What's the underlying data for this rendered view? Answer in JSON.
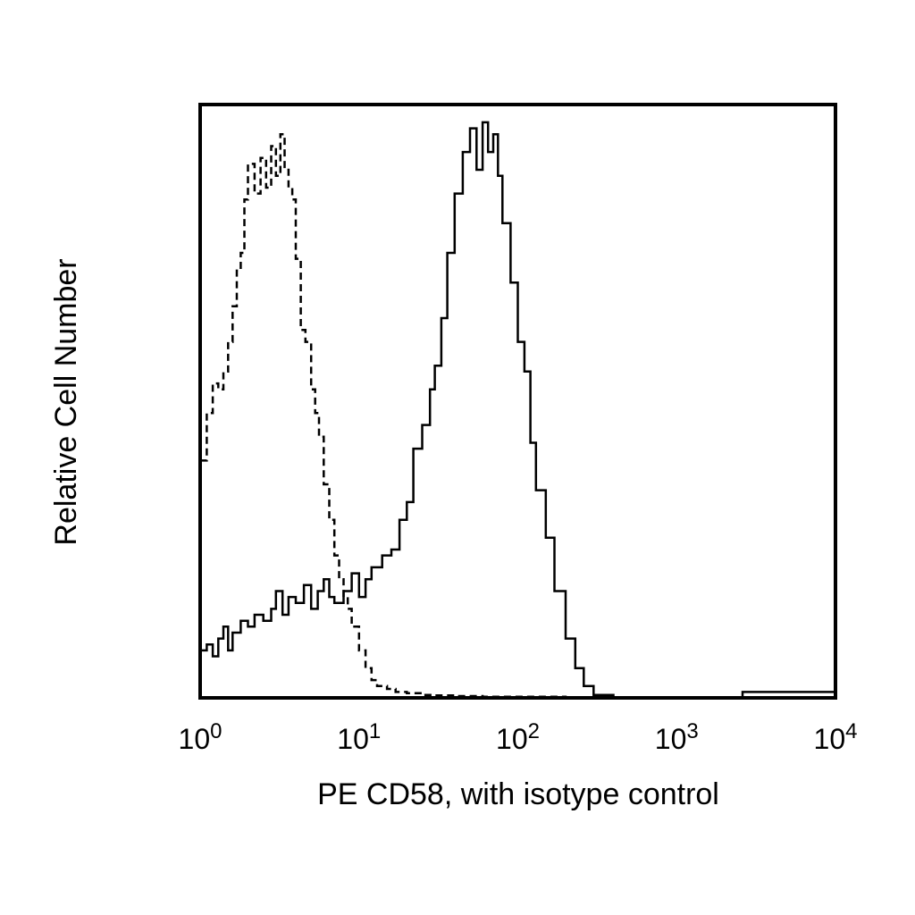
{
  "chart_data": {
    "type": "line",
    "title": "",
    "xlabel": "PE CD58, with isotype control",
    "ylabel": "Relative Cell Number",
    "x_scale": "log",
    "xlim": [
      1,
      10000
    ],
    "ylim": [
      0,
      100
    ],
    "grid": false,
    "legend": "none",
    "x_ticks": [
      {
        "base": "10",
        "exp": "0",
        "value": 1
      },
      {
        "base": "10",
        "exp": "1",
        "value": 10
      },
      {
        "base": "10",
        "exp": "2",
        "value": 100
      },
      {
        "base": "10",
        "exp": "3",
        "value": 1000
      },
      {
        "base": "10",
        "exp": "4",
        "value": 10000
      }
    ],
    "series": [
      {
        "style": "dashed",
        "color": "#000000",
        "x": [
          1.0,
          1.1,
          1.2,
          1.3,
          1.4,
          1.5,
          1.6,
          1.7,
          1.8,
          1.9,
          2.0,
          2.2,
          2.4,
          2.6,
          2.8,
          3.0,
          3.2,
          3.4,
          3.6,
          3.8,
          4.0,
          4.3,
          4.6,
          5.0,
          5.3,
          5.6,
          6.0,
          6.5,
          7.0,
          7.5,
          8.0,
          8.5,
          9.0,
          10.0,
          11.0,
          12.0,
          13.0,
          15.0,
          17.0,
          20.0,
          25.0,
          30.0,
          40.0,
          60.0,
          100.0,
          200.0,
          300.0,
          1000.0,
          10000.0
        ],
        "y": [
          40,
          48,
          53,
          52,
          55,
          60,
          66,
          72,
          75,
          84,
          90,
          85,
          91,
          86,
          93,
          88,
          95,
          89,
          86,
          84,
          74,
          62,
          60,
          52,
          48,
          44,
          36,
          30,
          24,
          20,
          17,
          15,
          12,
          8,
          5,
          3,
          2,
          1.5,
          1,
          0.8,
          0.5,
          0.4,
          0.3,
          0.2,
          0.2,
          0.1,
          0.1,
          0,
          0
        ]
      },
      {
        "style": "solid",
        "color": "#000000",
        "x": [
          1.0,
          1.1,
          1.2,
          1.3,
          1.4,
          1.5,
          1.6,
          1.8,
          2.0,
          2.2,
          2.5,
          2.8,
          3.0,
          3.3,
          3.6,
          4.0,
          4.5,
          5.0,
          5.5,
          6.0,
          6.5,
          7.0,
          8.0,
          9.0,
          10.0,
          11.0,
          12.0,
          14.0,
          16.0,
          18.0,
          20.0,
          22.0,
          25.0,
          28.0,
          30.0,
          33.0,
          36.0,
          40.0,
          45.0,
          50.0,
          55.0,
          60.0,
          65.0,
          70.0,
          75.0,
          80.0,
          90.0,
          100.0,
          110.0,
          120.0,
          130.0,
          150.0,
          170.0,
          200.0,
          230.0,
          260.0,
          300.0,
          400.0,
          1000.0,
          2400.0,
          2600.0,
          10000.0
        ],
        "y": [
          8,
          9,
          7,
          10,
          12,
          8,
          11,
          13,
          12,
          14,
          13,
          15,
          18,
          14,
          17,
          16,
          19,
          15,
          18,
          20,
          17,
          16,
          18,
          21,
          17,
          20,
          22,
          24,
          25,
          30,
          33,
          42,
          46,
          52,
          56,
          64,
          75,
          85,
          92,
          96,
          89,
          97,
          92,
          95,
          88,
          80,
          70,
          60,
          55,
          43,
          35,
          27,
          18,
          10,
          5,
          2,
          0.5,
          0,
          0,
          0,
          1,
          0
        ]
      }
    ]
  }
}
